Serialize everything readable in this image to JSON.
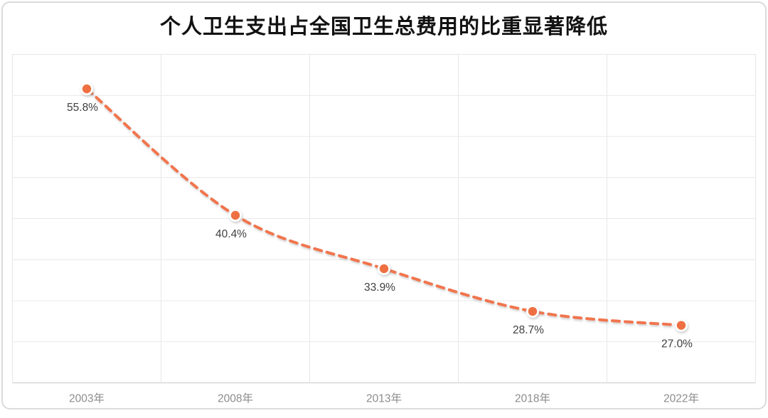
{
  "card": {
    "border_color": "#dbdbdb",
    "background": "#ffffff"
  },
  "chart_data": {
    "type": "line",
    "title": "个人卫生支出占全国卫生总费用的比重显著降低",
    "categories": [
      "2003年",
      "2008年",
      "2013年",
      "2018年",
      "2022年"
    ],
    "values": [
      55.8,
      40.4,
      33.9,
      28.7,
      27.0
    ],
    "value_labels": [
      "55.8%",
      "40.4%",
      "33.9%",
      "28.7%",
      "27.0%"
    ],
    "xlabel": "",
    "ylabel": "",
    "ylim": [
      20,
      60
    ],
    "y_grid_step": 5,
    "grid": "on",
    "legend": "none",
    "line_style": "dashed",
    "marker": "circle-white-ring",
    "colors": {
      "line": "#f1754d",
      "marker_fill": "#ee6f43",
      "marker_ring": "#ffffff",
      "value_label": "#3f3f3f",
      "axis_label": "#8c8c8c",
      "gridline": "#e8e8e8",
      "axis_line": "#d7d7d7",
      "title": "#121212"
    }
  }
}
